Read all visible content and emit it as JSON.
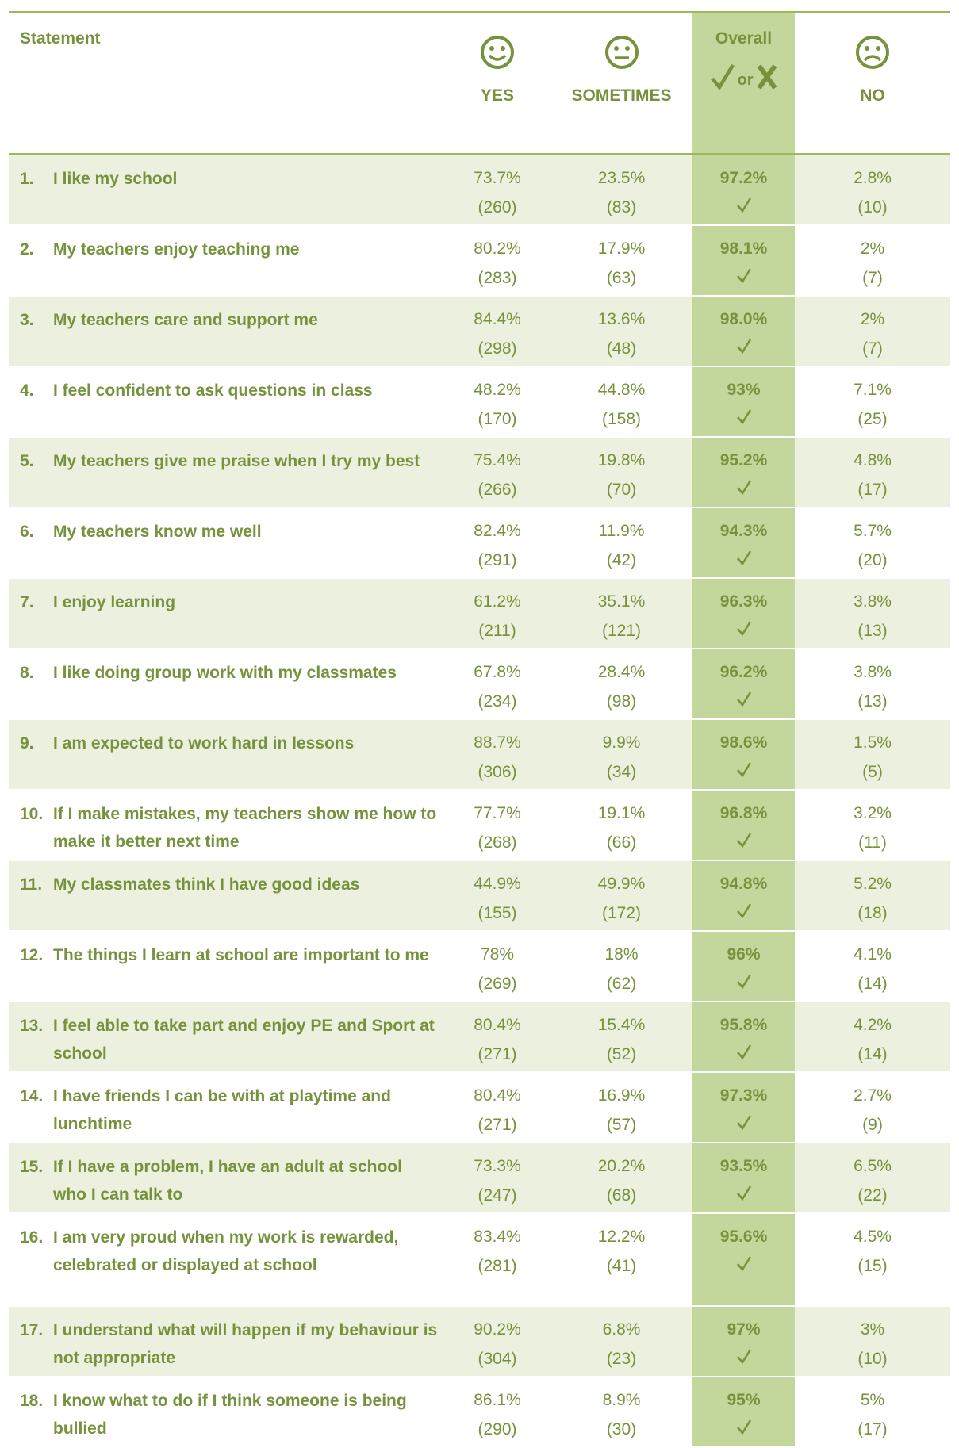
{
  "header": {
    "statement": "Statement",
    "yes": "YES",
    "sometimes": "SOMETIMES",
    "overall": "Overall",
    "or": "or",
    "no": "NO"
  },
  "rows": [
    {
      "num": "1.",
      "statement": "I like my school",
      "yes": "73.7%",
      "yes_n": "(260)",
      "sometimes": "23.5%",
      "sometimes_n": "(83)",
      "overall": "97.2%",
      "no": "2.8%",
      "no_n": "(10)"
    },
    {
      "num": "2.",
      "statement": "My teachers enjoy teaching me",
      "yes": "80.2%",
      "yes_n": "(283)",
      "sometimes": "17.9%",
      "sometimes_n": "(63)",
      "overall": "98.1%",
      "no": "2%",
      "no_n": "(7)"
    },
    {
      "num": "3.",
      "statement": "My teachers care and support me",
      "yes": "84.4%",
      "yes_n": "(298)",
      "sometimes": "13.6%",
      "sometimes_n": "(48)",
      "overall": "98.0%",
      "no": "2%",
      "no_n": "(7)"
    },
    {
      "num": "4.",
      "statement": "I feel confident to ask questions in class",
      "yes": "48.2%",
      "yes_n": "(170)",
      "sometimes": "44.8%",
      "sometimes_n": "(158)",
      "overall": "93%",
      "no": "7.1%",
      "no_n": "(25)"
    },
    {
      "num": "5.",
      "statement": "My teachers give me praise when I try my best",
      "yes": "75.4%",
      "yes_n": "(266)",
      "sometimes": "19.8%",
      "sometimes_n": "(70)",
      "overall": "95.2%",
      "no": "4.8%",
      "no_n": "(17)"
    },
    {
      "num": "6.",
      "statement": "My teachers know me well",
      "yes": "82.4%",
      "yes_n": "(291)",
      "sometimes": "11.9%",
      "sometimes_n": "(42)",
      "overall": "94.3%",
      "no": "5.7%",
      "no_n": "(20)"
    },
    {
      "num": "7.",
      "statement": "I enjoy learning",
      "yes": "61.2%",
      "yes_n": "(211)",
      "sometimes": "35.1%",
      "sometimes_n": "(121)",
      "overall": "96.3%",
      "no": "3.8%",
      "no_n": "(13)"
    },
    {
      "num": "8.",
      "statement": "I like doing group work with my classmates",
      "yes": "67.8%",
      "yes_n": "(234)",
      "sometimes": "28.4%",
      "sometimes_n": "(98)",
      "overall": "96.2%",
      "no": "3.8%",
      "no_n": "(13)"
    },
    {
      "num": "9.",
      "statement": "I am expected to work hard in lessons",
      "yes": "88.7%",
      "yes_n": "(306)",
      "sometimes": "9.9%",
      "sometimes_n": "(34)",
      "overall": "98.6%",
      "no": "1.5%",
      "no_n": "(5)"
    },
    {
      "num": "10.",
      "statement": "If I make mistakes, my teachers show me how to make it better next time",
      "yes": "77.7%",
      "yes_n": "(268)",
      "sometimes": "19.1%",
      "sometimes_n": "(66)",
      "overall": "96.8%",
      "no": "3.2%",
      "no_n": "(11)"
    },
    {
      "num": "11.",
      "statement": "My classmates think I have good ideas",
      "yes": "44.9%",
      "yes_n": "(155)",
      "sometimes": "49.9%",
      "sometimes_n": "(172)",
      "overall": "94.8%",
      "no": "5.2%",
      "no_n": "(18)"
    },
    {
      "num": "12.",
      "statement": "The things I learn at school are important to me",
      "yes": "78%",
      "yes_n": "(269)",
      "sometimes": "18%",
      "sometimes_n": "(62)",
      "overall": "96%",
      "no": "4.1%",
      "no_n": "(14)"
    },
    {
      "num": "13.",
      "statement": "I feel able to take part and enjoy PE and Sport at school",
      "yes": "80.4%",
      "yes_n": "(271)",
      "sometimes": "15.4%",
      "sometimes_n": "(52)",
      "overall": "95.8%",
      "no": "4.2%",
      "no_n": "(14)"
    },
    {
      "num": "14.",
      "statement": "I have friends I can be with at playtime and lunchtime",
      "yes": "80.4%",
      "yes_n": "(271)",
      "sometimes": "16.9%",
      "sometimes_n": "(57)",
      "overall": "97.3%",
      "no": "2.7%",
      "no_n": "(9)"
    },
    {
      "num": "15.",
      "statement": "If I have a problem, I have an adult at school who I can talk to",
      "yes": "73.3%",
      "yes_n": "(247)",
      "sometimes": "20.2%",
      "sometimes_n": "(68)",
      "overall": "93.5%",
      "no": "6.5%",
      "no_n": "(22)"
    },
    {
      "num": "16.",
      "statement": "I am very proud when my work is rewarded, celebrated or displayed at school",
      "yes": "83.4%",
      "yes_n": "(281)",
      "sometimes": "12.2%",
      "sometimes_n": "(41)",
      "overall": "95.6%",
      "no": "4.5%",
      "no_n": "(15)"
    },
    {
      "num": "17.",
      "statement": "I understand what will happen if my behaviour is not appropriate",
      "yes": "90.2%",
      "yes_n": "(304)",
      "sometimes": "6.8%",
      "sometimes_n": "(23)",
      "overall": "97%",
      "no": "3%",
      "no_n": "(10)"
    },
    {
      "num": "18.",
      "statement": "I know what to do if I think someone is being bullied",
      "yes": "86.1%",
      "yes_n": "(290)",
      "sometimes": "8.9%",
      "sometimes_n": "(30)",
      "overall": "95%",
      "no": "5%",
      "no_n": "(17)"
    }
  ]
}
